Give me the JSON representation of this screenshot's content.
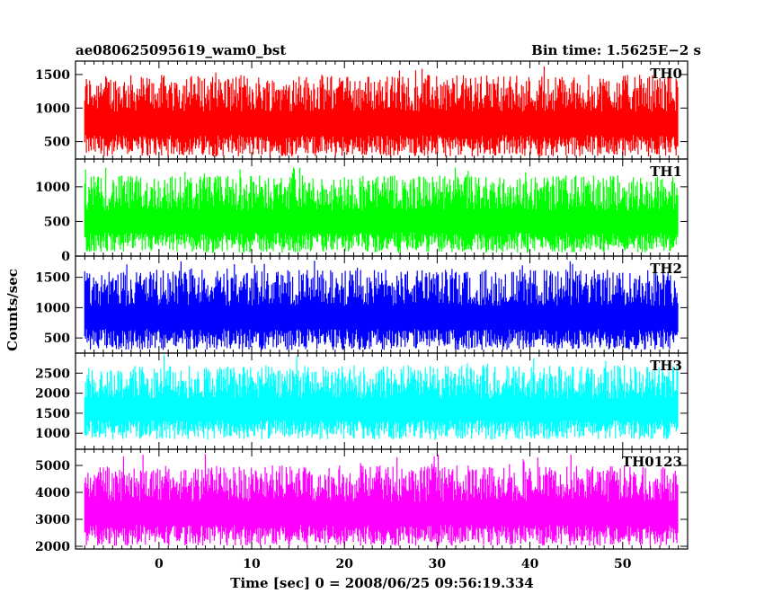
{
  "header": {
    "left_title": "ae080625095619_wam0_bst",
    "right_title": "Bin time: 1.5625E−2 s"
  },
  "chart_data": {
    "type": "line",
    "xlabel": "Time [sec] 0 = 2008/06/25 09:56:19.334",
    "ylabel": "Counts/sec",
    "xlim": [
      -9,
      57
    ],
    "x_range": [
      -8,
      56
    ],
    "x_ticks": [
      0,
      10,
      20,
      30,
      40,
      50
    ],
    "bin_time_s": 0.015625,
    "panels": [
      {
        "name": "TH0",
        "color": "#ff0000",
        "ylim": [
          240,
          1700
        ],
        "y_ticks": [
          500,
          1000,
          1500
        ],
        "low": 250,
        "high": 1700,
        "mid": 980
      },
      {
        "name": "TH1",
        "color": "#00ff00",
        "ylim": [
          0,
          1400
        ],
        "y_ticks": [
          0,
          500,
          1000
        ],
        "low": 20,
        "high": 1350,
        "mid": 490
      },
      {
        "name": "TH2",
        "color": "#0000ff",
        "ylim": [
          250,
          1850
        ],
        "y_ticks": [
          500,
          1000,
          1500
        ],
        "low": 270,
        "high": 1850,
        "mid": 960
      },
      {
        "name": "TH3",
        "color": "#00ffff",
        "ylim": [
          600,
          3000
        ],
        "y_ticks": [
          1000,
          1500,
          2000,
          2500
        ],
        "low": 800,
        "high": 3000,
        "mid": 1800
      },
      {
        "name": "TH0123",
        "color": "#ff00ff",
        "ylim": [
          1900,
          5600
        ],
        "y_ticks": [
          2000,
          3000,
          4000,
          5000
        ],
        "low": 1950,
        "high": 5500,
        "mid": 3550
      }
    ]
  }
}
